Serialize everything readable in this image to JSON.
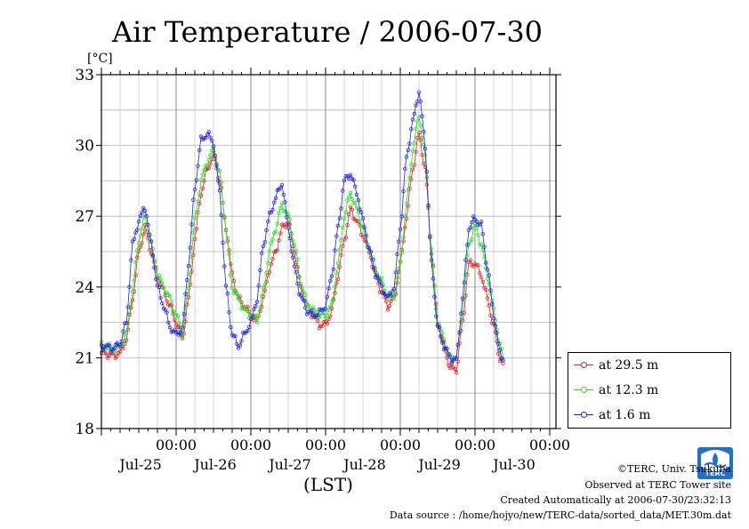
{
  "chart_data": {
    "type": "line",
    "title": "Air Temperature / 2006-07-30",
    "yunit": "[°C]",
    "xlabel": "(LST)",
    "ylim": [
      18,
      33
    ],
    "yticks": [
      18,
      21,
      24,
      27,
      30,
      33
    ],
    "xlim_hours": [
      0,
      144
    ],
    "xtick_labels": [
      {
        "time": "00:00",
        "date": "Jul-25",
        "hour": 24
      },
      {
        "time": "00:00",
        "date": "Jul-26",
        "hour": 48
      },
      {
        "time": "00:00",
        "date": "Jul-27",
        "hour": 72
      },
      {
        "time": "00:00",
        "date": "Jul-28",
        "hour": 96
      },
      {
        "time": "00:00",
        "date": "Jul-29",
        "hour": 120
      },
      {
        "time": "00:00",
        "date": "Jul-30",
        "hour": 144
      }
    ],
    "grid": true,
    "legend_position": "right",
    "series": [
      {
        "name": "at 29.5 m",
        "color": "#e82020",
        "keypoints": [
          [
            0,
            21.2
          ],
          [
            4,
            21.1
          ],
          [
            6,
            21.2
          ],
          [
            8,
            21.8
          ],
          [
            10,
            23.5
          ],
          [
            12,
            25.5
          ],
          [
            14,
            26.5
          ],
          [
            16,
            25.5
          ],
          [
            18,
            24.5
          ],
          [
            20,
            23.8
          ],
          [
            22,
            23.2
          ],
          [
            24,
            22.5
          ],
          [
            26,
            21.8
          ],
          [
            28,
            23.5
          ],
          [
            30,
            26.0
          ],
          [
            32,
            28.0
          ],
          [
            34,
            29.0
          ],
          [
            36,
            29.6
          ],
          [
            38,
            28.5
          ],
          [
            40,
            26.5
          ],
          [
            42,
            24.5
          ],
          [
            44,
            23.5
          ],
          [
            46,
            23.2
          ],
          [
            48,
            22.8
          ],
          [
            50,
            22.6
          ],
          [
            52,
            23.5
          ],
          [
            54,
            24.8
          ],
          [
            56,
            25.5
          ],
          [
            58,
            26.5
          ],
          [
            60,
            26.8
          ],
          [
            62,
            25.5
          ],
          [
            64,
            24.0
          ],
          [
            66,
            23.2
          ],
          [
            68,
            22.8
          ],
          [
            70,
            22.4
          ],
          [
            72,
            22.4
          ],
          [
            74,
            23.0
          ],
          [
            76,
            24.5
          ],
          [
            78,
            26.0
          ],
          [
            80,
            27.3
          ],
          [
            82,
            26.8
          ],
          [
            84,
            26.2
          ],
          [
            86,
            25.5
          ],
          [
            88,
            24.5
          ],
          [
            90,
            23.8
          ],
          [
            92,
            23.2
          ],
          [
            94,
            23.5
          ],
          [
            96,
            25.0
          ],
          [
            98,
            27.0
          ],
          [
            100,
            29.0
          ],
          [
            102,
            30.5
          ],
          [
            104,
            29.0
          ],
          [
            106,
            25.5
          ],
          [
            108,
            22.5
          ],
          [
            110,
            21.5
          ],
          [
            112,
            20.6
          ],
          [
            114,
            20.5
          ],
          [
            116,
            22.5
          ],
          [
            118,
            25.0
          ],
          [
            120,
            25.0
          ],
          [
            122,
            24.5
          ],
          [
            124,
            23.5
          ],
          [
            126,
            22.3
          ],
          [
            128,
            21.0
          ],
          [
            129,
            20.7
          ]
        ]
      },
      {
        "name": "at 12.3 m",
        "color": "#22e022",
        "keypoints": [
          [
            0,
            21.5
          ],
          [
            4,
            21.4
          ],
          [
            6,
            21.5
          ],
          [
            8,
            22.0
          ],
          [
            10,
            23.8
          ],
          [
            12,
            26.0
          ],
          [
            14,
            27.0
          ],
          [
            16,
            25.8
          ],
          [
            18,
            24.5
          ],
          [
            20,
            24.0
          ],
          [
            22,
            23.5
          ],
          [
            24,
            22.8
          ],
          [
            26,
            22.0
          ],
          [
            28,
            24.0
          ],
          [
            30,
            26.8
          ],
          [
            32,
            28.5
          ],
          [
            34,
            29.3
          ],
          [
            36,
            29.8
          ],
          [
            38,
            28.8
          ],
          [
            40,
            26.5
          ],
          [
            42,
            24.0
          ],
          [
            44,
            23.5
          ],
          [
            46,
            23.0
          ],
          [
            48,
            22.8
          ],
          [
            50,
            22.6
          ],
          [
            52,
            23.8
          ],
          [
            54,
            25.5
          ],
          [
            56,
            26.5
          ],
          [
            58,
            27.5
          ],
          [
            60,
            27.0
          ],
          [
            62,
            25.8
          ],
          [
            64,
            24.2
          ],
          [
            66,
            23.3
          ],
          [
            68,
            23.0
          ],
          [
            70,
            22.8
          ],
          [
            72,
            22.8
          ],
          [
            74,
            23.2
          ],
          [
            76,
            25.0
          ],
          [
            78,
            27.0
          ],
          [
            80,
            28.0
          ],
          [
            82,
            27.3
          ],
          [
            84,
            26.5
          ],
          [
            86,
            25.7
          ],
          [
            88,
            24.8
          ],
          [
            90,
            24.2
          ],
          [
            92,
            23.6
          ],
          [
            94,
            23.6
          ],
          [
            96,
            25.0
          ],
          [
            98,
            27.5
          ],
          [
            100,
            29.8
          ],
          [
            102,
            31.3
          ],
          [
            104,
            29.5
          ],
          [
            106,
            25.5
          ],
          [
            108,
            22.5
          ],
          [
            110,
            21.8
          ],
          [
            112,
            21.0
          ],
          [
            114,
            21.0
          ],
          [
            116,
            23.0
          ],
          [
            118,
            25.8
          ],
          [
            120,
            26.6
          ],
          [
            122,
            25.8
          ],
          [
            124,
            24.5
          ],
          [
            126,
            23.0
          ],
          [
            128,
            21.5
          ],
          [
            129,
            21.0
          ]
        ]
      },
      {
        "name": "at 1.6 m",
        "color": "#2222e8",
        "keypoints": [
          [
            0,
            21.5
          ],
          [
            4,
            21.4
          ],
          [
            6,
            21.6
          ],
          [
            8,
            22.5
          ],
          [
            10,
            25.8
          ],
          [
            12,
            26.8
          ],
          [
            14,
            27.4
          ],
          [
            16,
            25.8
          ],
          [
            18,
            24.0
          ],
          [
            20,
            23.2
          ],
          [
            22,
            22.3
          ],
          [
            24,
            22.0
          ],
          [
            26,
            22.2
          ],
          [
            28,
            25.0
          ],
          [
            30,
            28.2
          ],
          [
            32,
            30.2
          ],
          [
            34,
            30.5
          ],
          [
            36,
            30.1
          ],
          [
            38,
            28.0
          ],
          [
            40,
            24.0
          ],
          [
            42,
            22.0
          ],
          [
            44,
            21.5
          ],
          [
            46,
            22.0
          ],
          [
            48,
            22.5
          ],
          [
            50,
            23.5
          ],
          [
            52,
            25.8
          ],
          [
            54,
            27.0
          ],
          [
            56,
            27.8
          ],
          [
            58,
            28.4
          ],
          [
            60,
            26.5
          ],
          [
            62,
            24.8
          ],
          [
            64,
            23.6
          ],
          [
            66,
            23.0
          ],
          [
            68,
            22.8
          ],
          [
            70,
            22.9
          ],
          [
            72,
            23.2
          ],
          [
            74,
            24.5
          ],
          [
            76,
            26.5
          ],
          [
            78,
            28.5
          ],
          [
            80,
            28.8
          ],
          [
            82,
            28.0
          ],
          [
            84,
            26.8
          ],
          [
            86,
            25.6
          ],
          [
            88,
            24.6
          ],
          [
            90,
            24.0
          ],
          [
            92,
            23.5
          ],
          [
            94,
            24.0
          ],
          [
            96,
            26.5
          ],
          [
            98,
            29.5
          ],
          [
            100,
            31.0
          ],
          [
            102,
            32.3
          ],
          [
            104,
            30.0
          ],
          [
            106,
            25.0
          ],
          [
            108,
            22.3
          ],
          [
            110,
            21.5
          ],
          [
            112,
            21.0
          ],
          [
            114,
            20.9
          ],
          [
            116,
            23.5
          ],
          [
            118,
            26.5
          ],
          [
            120,
            26.9
          ],
          [
            122,
            26.6
          ],
          [
            124,
            24.8
          ],
          [
            126,
            22.8
          ],
          [
            128,
            21.2
          ],
          [
            129,
            21.0
          ]
        ]
      }
    ]
  },
  "legend": {
    "items": [
      {
        "label": "at 29.5 m",
        "color": "#e82020"
      },
      {
        "label": "at 12.3 m",
        "color": "#22e022"
      },
      {
        "label": "at 1.6 m",
        "color": "#2222e8"
      }
    ]
  },
  "footer": {
    "copyright": "©TERC, Univ. Tsukuba",
    "observed": "Observed at TERC Tower site",
    "created": "Created Automatically at 2006-07-30/23:32:13",
    "source": "Data source : /home/hojyo/new/TERC-data/sorted_data/MET.30m.dat",
    "logo_text": "TERC"
  }
}
